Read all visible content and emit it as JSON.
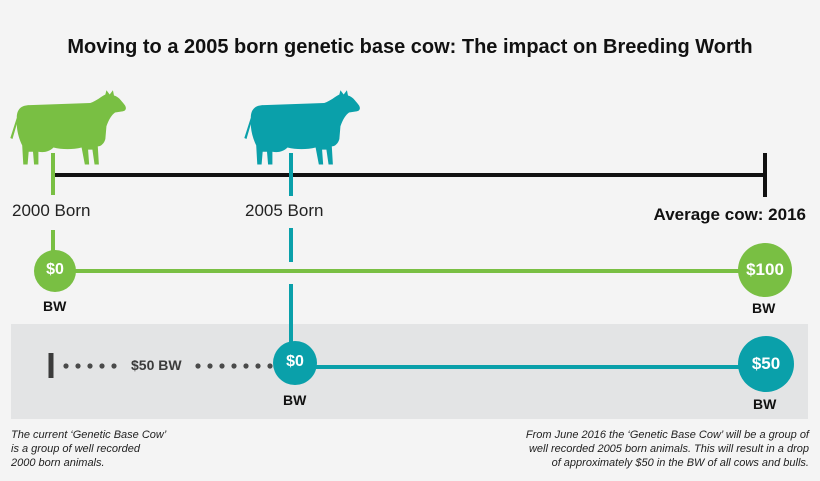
{
  "title": "Moving to a 2005 born genetic base cow: The impact on Breeding Worth",
  "colors": {
    "green": "#79bf43",
    "teal": "#0aa0aa",
    "black": "#111111",
    "band": "#e3e4e5",
    "dots": "#4a4a4a"
  },
  "icons": {
    "cow_2000": "cow-silhouette-icon",
    "cow_2005": "cow-silhouette-icon"
  },
  "timeline": {
    "born_2000": "2000 Born",
    "born_2005": "2005 Born",
    "average_cow": "Average cow: 2016"
  },
  "green_row": {
    "start_value": "$0",
    "start_unit": "BW",
    "end_value": "$100",
    "end_unit": "BW"
  },
  "teal_row": {
    "gap_label": "$50 BW",
    "start_value": "$0",
    "start_unit": "BW",
    "end_value": "$50",
    "end_unit": "BW"
  },
  "notes": {
    "left": [
      "The current ‘Genetic Base Cow’",
      "is a group of well recorded",
      "2000 born animals."
    ],
    "right": [
      "From June 2016 the ‘Genetic Base Cow’ will be a group of",
      "well recorded 2005 born animals. This will result in a drop",
      "of approximately $50 in the BW of all cows and bulls."
    ]
  }
}
